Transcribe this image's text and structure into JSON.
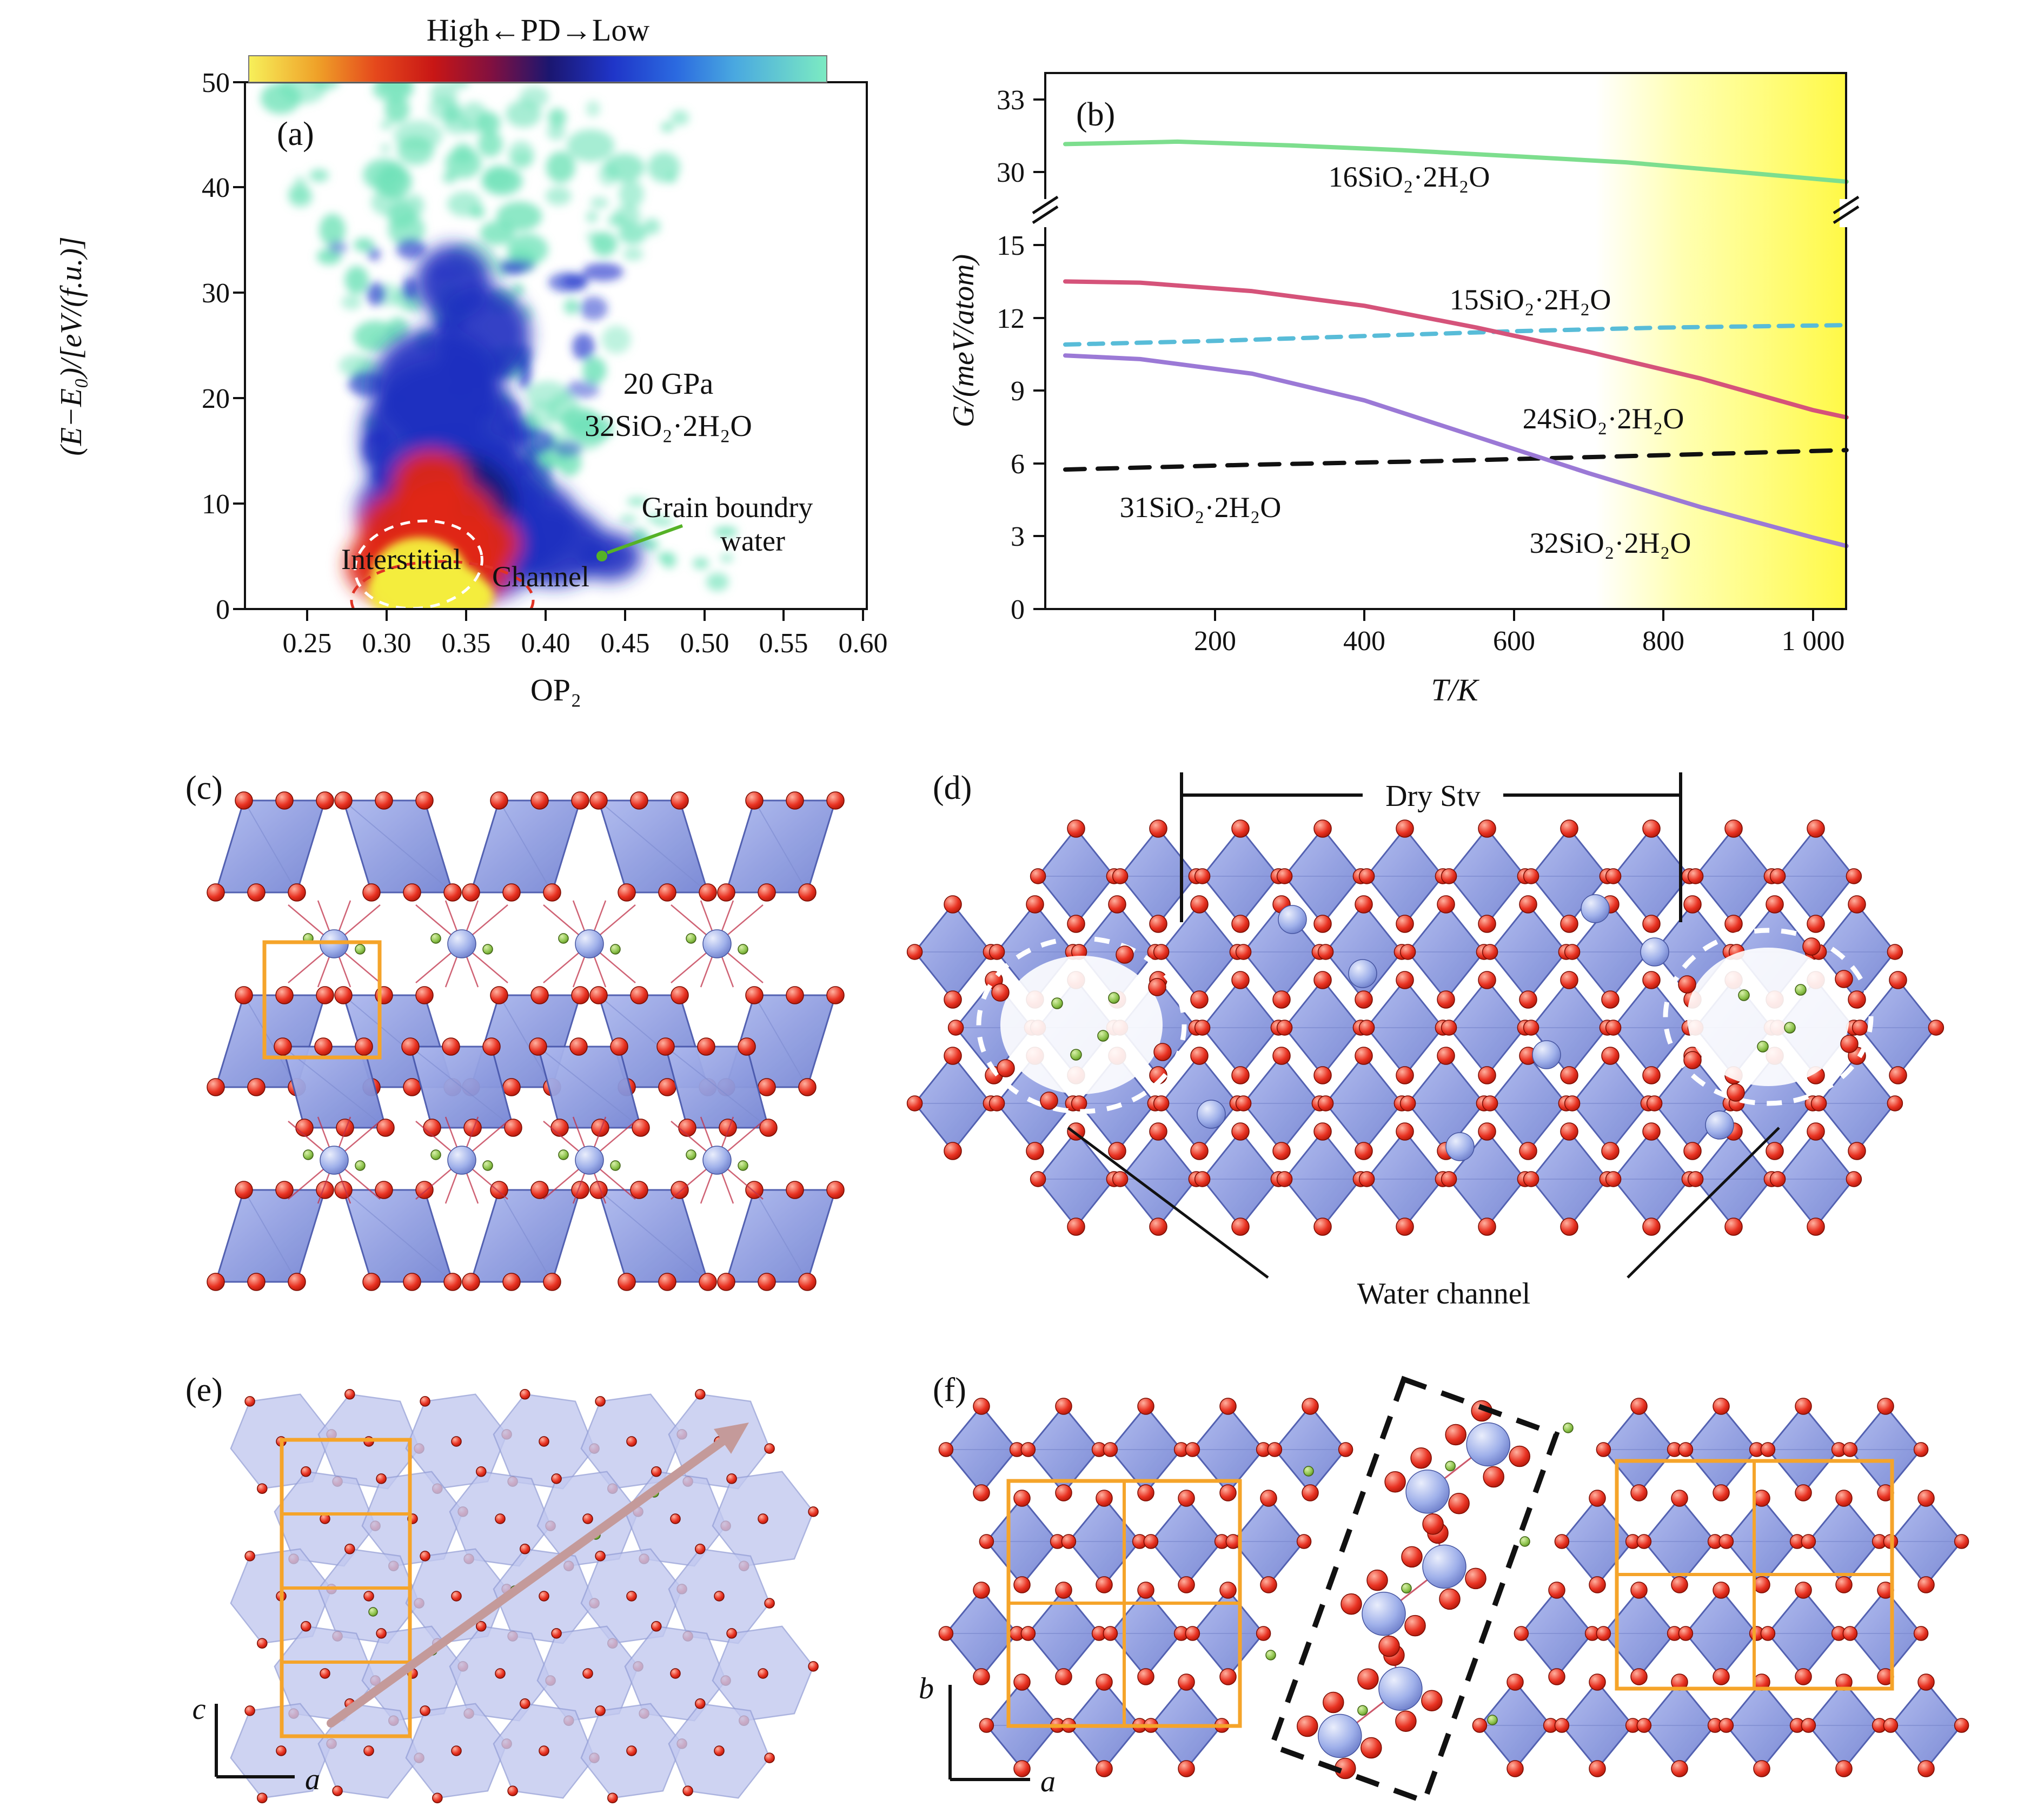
{
  "panel_a": {
    "label": "(a)",
    "colorbar_title": "High←PD→Low",
    "xlabel": "OP₂",
    "ylabel": "(E−E₀)/[eV/(f.u.)]",
    "x_ticks": [
      "0.25",
      "0.30",
      "0.35",
      "0.40",
      "0.45",
      "0.50",
      "0.55",
      "0.60"
    ],
    "y_ticks": [
      "0",
      "10",
      "20",
      "30",
      "40",
      "50"
    ],
    "annotation_pressure": "20 GPa",
    "annotation_formula": "32SiO₂·2H₂O",
    "annotation_grain_line1": "Grain boundry",
    "annotation_grain_line2": "water",
    "annotation_interstitial": "Interstitial",
    "annotation_channel": "Channel"
  },
  "panel_b": {
    "label": "(b)",
    "xlabel": "T/K",
    "ylabel": "G/(meV/atom)",
    "x_ticks": [
      "200",
      "400",
      "600",
      "800",
      "1 000"
    ],
    "y_ticks": [
      "0",
      "3",
      "6",
      "9",
      "12",
      "15",
      "30",
      "33"
    ]
  },
  "panel_c": {
    "label": "(c)"
  },
  "panel_d": {
    "label": "(d)",
    "bracket_label": "Dry Stv",
    "annotation": "Water channel"
  },
  "panel_e": {
    "label": "(e)",
    "axis_vertical": "c",
    "axis_horizontal": "a"
  },
  "panel_f": {
    "label": "(f)",
    "axis_vertical": "b",
    "axis_horizontal": "a"
  },
  "chart_data": [
    {
      "type": "heatmap",
      "panel": "a",
      "xlabel": "OP₂",
      "ylabel": "(E−E₀)/[eV/(f.u.)]",
      "xlim": [
        0.22,
        0.61
      ],
      "ylim": [
        0,
        50
      ],
      "x_ticks": [
        0.25,
        0.3,
        0.35,
        0.4,
        0.45,
        0.5,
        0.55,
        0.6
      ],
      "y_ticks": [
        0,
        10,
        20,
        30,
        40,
        50
      ],
      "colorbar_title": "High←PD→Low",
      "conditions": "20 GPa",
      "system": "32SiO₂·2H₂O",
      "features": [
        {
          "label": "Interstitial",
          "op2": 0.32,
          "energy": 4,
          "probability_density": "high"
        },
        {
          "label": "Channel",
          "op2": 0.36,
          "energy": 2,
          "probability_density": "high"
        },
        {
          "label": "Grain boundry water",
          "op2": 0.45,
          "energy": 5,
          "probability_density": "low"
        }
      ]
    },
    {
      "type": "line",
      "panel": "b",
      "xlabel": "T/K",
      "ylabel": "G/(meV/atom)",
      "x_ticks": [
        "200",
        "400",
        "600",
        "800",
        "1 000"
      ],
      "x_range": [
        0,
        1045
      ],
      "y_axis_break": {
        "lower_range": [
          0,
          15
        ],
        "upper_range": [
          30,
          34
        ],
        "lower_ticks": [
          0,
          3,
          6,
          9,
          12,
          15
        ],
        "upper_ticks": [
          30,
          33
        ]
      },
      "highlight_region": {
        "x_start": 740,
        "x_end": 1045,
        "color": "#ffff55"
      },
      "series": [
        {
          "name": "16SiO₂·2H₂O",
          "color": "#7dde8e",
          "style": "solid",
          "axis": "upper",
          "x": [
            0,
            150,
            300,
            450,
            600,
            750,
            900,
            1045
          ],
          "y": [
            31.15,
            31.25,
            31.1,
            30.9,
            30.65,
            30.4,
            30.0,
            29.6
          ]
        },
        {
          "name": "15SiO₂·2H₂O",
          "color": "#58bcd8",
          "style": "dashed",
          "axis": "lower",
          "x": [
            0,
            200,
            400,
            600,
            800,
            1045
          ],
          "y": [
            10.9,
            11.05,
            11.25,
            11.45,
            11.6,
            11.7
          ]
        },
        {
          "name": "24SiO₂·2H₂O",
          "color": "#d5537a",
          "style": "solid",
          "axis": "lower",
          "x": [
            0,
            100,
            250,
            400,
            550,
            700,
            850,
            1000,
            1045
          ],
          "y": [
            13.5,
            13.45,
            13.1,
            12.5,
            11.6,
            10.6,
            9.5,
            8.2,
            7.9
          ]
        },
        {
          "name": "31SiO₂·2H₂O",
          "color": "#111111",
          "style": "dashed",
          "axis": "lower",
          "x": [
            0,
            250,
            500,
            750,
            1045
          ],
          "y": [
            5.75,
            5.95,
            6.1,
            6.3,
            6.55
          ]
        },
        {
          "name": "32SiO₂·2H₂O",
          "color": "#9b79d6",
          "style": "solid",
          "axis": "lower",
          "x": [
            0,
            100,
            250,
            400,
            550,
            700,
            850,
            1000,
            1045
          ],
          "y": [
            10.45,
            10.3,
            9.7,
            8.6,
            7.1,
            5.6,
            4.2,
            2.95,
            2.6
          ]
        }
      ]
    }
  ]
}
